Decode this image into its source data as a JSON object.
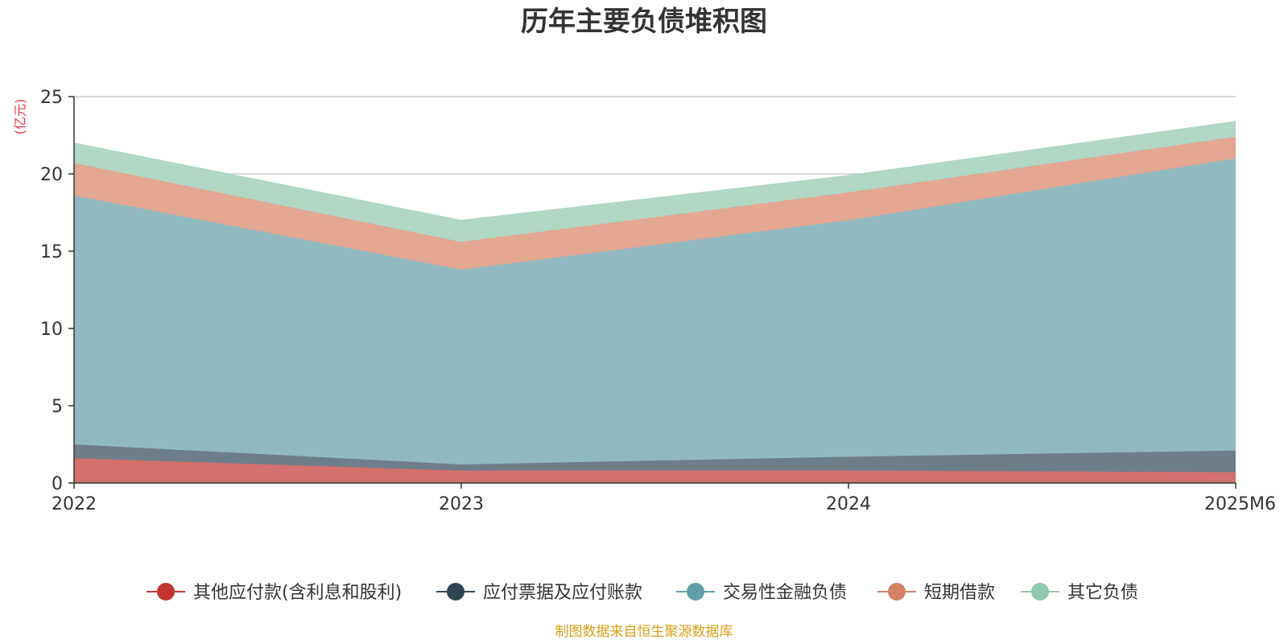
{
  "chart_data": {
    "type": "area",
    "title": "历年主要负债堆积图",
    "unit": "(亿元)",
    "categories": [
      "2022",
      "2023",
      "2024",
      "2025M6"
    ],
    "ylim": [
      0,
      25
    ],
    "yticks": [
      "0",
      "5",
      "10",
      "15",
      "20",
      "25"
    ],
    "grid": true,
    "legend_position": "bottom",
    "stacked": true,
    "series": [
      {
        "name": "其他应付款(含利息和股利)",
        "values": [
          1.6,
          0.8,
          0.8,
          0.7
        ],
        "color": "#c23531",
        "fill": "#d4706e"
      },
      {
        "name": "应付票据及应付账款",
        "values": [
          0.9,
          0.4,
          0.9,
          1.4
        ],
        "color": "#2f4554",
        "fill": "#6e7e89"
      },
      {
        "name": "交易性金融负债",
        "values": [
          16.1,
          12.6,
          15.3,
          18.9
        ],
        "color": "#61a0a8",
        "fill": "#91b9c0"
      },
      {
        "name": "短期借款",
        "values": [
          2.1,
          1.8,
          1.8,
          1.4
        ],
        "color": "#d48265",
        "fill": "#e2a691"
      },
      {
        "name": "其它负债",
        "values": [
          1.3,
          1.4,
          1.1,
          1.0
        ],
        "color": "#91c7ae",
        "fill": "#b1d7c5"
      }
    ],
    "source": "制图数据来自恒生聚源数据库"
  }
}
